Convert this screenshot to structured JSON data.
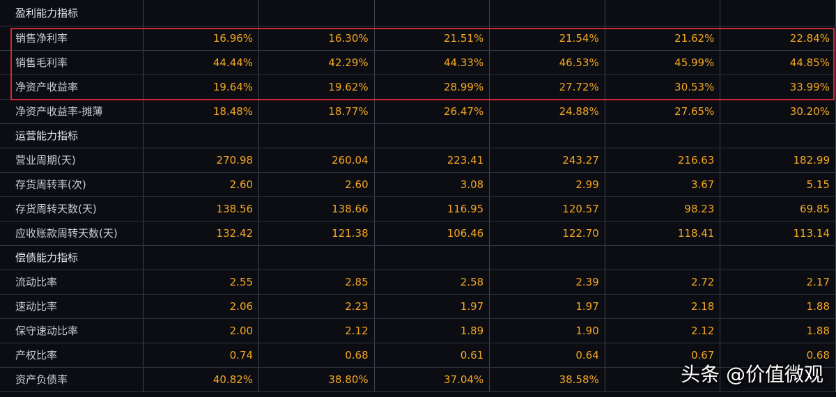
{
  "sections": [
    {
      "title": "盈利能力指标",
      "rows": [
        {
          "label": "销售净利率",
          "values": [
            "16.96%",
            "16.30%",
            "21.51%",
            "21.54%",
            "21.62%",
            "22.84%"
          ]
        },
        {
          "label": "销售毛利率",
          "values": [
            "44.44%",
            "42.29%",
            "44.33%",
            "46.53%",
            "45.99%",
            "44.85%"
          ]
        },
        {
          "label": "净资产收益率",
          "values": [
            "19.64%",
            "19.62%",
            "28.99%",
            "27.72%",
            "30.53%",
            "33.99%"
          ]
        },
        {
          "label": "净资产收益率-摊薄",
          "values": [
            "18.48%",
            "18.77%",
            "26.47%",
            "24.88%",
            "27.65%",
            "30.20%"
          ]
        }
      ]
    },
    {
      "title": "运营能力指标",
      "rows": [
        {
          "label": "营业周期(天)",
          "values": [
            "270.98",
            "260.04",
            "223.41",
            "243.27",
            "216.63",
            "182.99"
          ]
        },
        {
          "label": "存货周转率(次)",
          "values": [
            "2.60",
            "2.60",
            "3.08",
            "2.99",
            "3.67",
            "5.15"
          ]
        },
        {
          "label": "存货周转天数(天)",
          "values": [
            "138.56",
            "138.66",
            "116.95",
            "120.57",
            "98.23",
            "69.85"
          ]
        },
        {
          "label": "应收账款周转天数(天)",
          "values": [
            "132.42",
            "121.38",
            "106.46",
            "122.70",
            "118.41",
            "113.14"
          ]
        }
      ]
    },
    {
      "title": "偿债能力指标",
      "rows": [
        {
          "label": "流动比率",
          "values": [
            "2.55",
            "2.85",
            "2.58",
            "2.39",
            "2.72",
            "2.17"
          ]
        },
        {
          "label": "速动比率",
          "values": [
            "2.06",
            "2.23",
            "1.97",
            "1.97",
            "2.18",
            "1.88"
          ]
        },
        {
          "label": "保守速动比率",
          "values": [
            "2.00",
            "2.12",
            "1.89",
            "1.90",
            "2.12",
            "1.88"
          ]
        },
        {
          "label": "产权比率",
          "values": [
            "0.74",
            "0.68",
            "0.61",
            "0.64",
            "0.67",
            "0.68"
          ]
        },
        {
          "label": "资产负债率",
          "values": [
            "40.82%",
            "38.80%",
            "37.04%",
            "38.58%",
            "",
            ""
          ]
        }
      ]
    }
  ],
  "watermark": "头条 @价值微观",
  "colors": {
    "background": "#0b0d12",
    "value": "#f5a623",
    "label": "#c9ced6",
    "highlight_border": "#d02a36"
  }
}
